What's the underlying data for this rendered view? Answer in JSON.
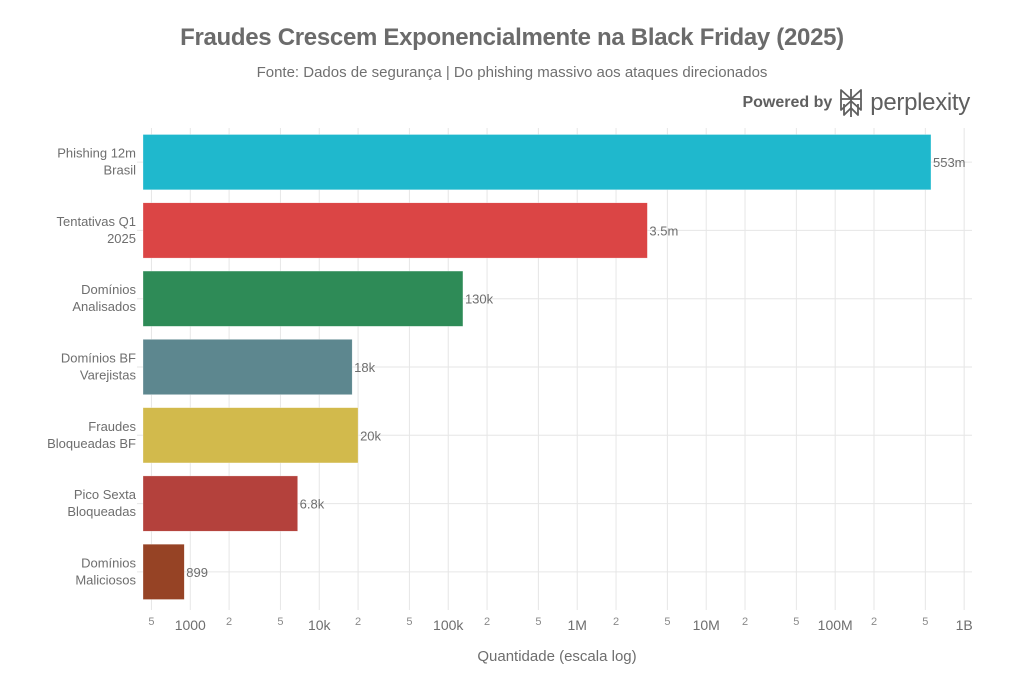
{
  "chart_data": {
    "type": "bar",
    "orientation": "horizontal",
    "title": "Fraudes Crescem Exponencialmente na Black Friday (2025)",
    "subtitle": "Fonte: Dados de segurança | Do phishing massivo aos ataques direcionados",
    "xlabel": "Quantidade (escala log)",
    "ylabel": "",
    "xscale": "log",
    "xlim": [
      430,
      1150000000
    ],
    "grid": true,
    "categories": [
      [
        "Phishing 12m",
        "Brasil"
      ],
      [
        "Tentativas Q1",
        "2025"
      ],
      [
        "Domínios",
        "Analisados"
      ],
      [
        "Domínios BF",
        "Varejistas"
      ],
      [
        "Fraudes",
        "Bloqueadas BF"
      ],
      [
        "Pico Sexta",
        "Bloqueadas"
      ],
      [
        "Domínios",
        "Maliciosos"
      ]
    ],
    "values": [
      553000000,
      3500000,
      130000,
      18000,
      20000,
      6800,
      899
    ],
    "value_labels": [
      "553m",
      "3.5m",
      "130k",
      "18k",
      "20k",
      "6.8k",
      "899"
    ],
    "colors": [
      "#1FB8CD",
      "#DB4545",
      "#2E8B57",
      "#5D878F",
      "#D2BA4C",
      "#B4413C",
      "#964325"
    ],
    "x_major_ticks": [
      {
        "value": 1000,
        "label": "1000"
      },
      {
        "value": 10000,
        "label": "10k"
      },
      {
        "value": 100000,
        "label": "100k"
      },
      {
        "value": 1000000,
        "label": "1M"
      },
      {
        "value": 10000000,
        "label": "10M"
      },
      {
        "value": 100000000,
        "label": "100M"
      },
      {
        "value": 1000000000,
        "label": "1B"
      }
    ],
    "x_minor_ticks": [
      {
        "value": 500,
        "label": "5"
      },
      {
        "value": 2000,
        "label": "2"
      },
      {
        "value": 5000,
        "label": "5"
      },
      {
        "value": 20000,
        "label": "2"
      },
      {
        "value": 50000,
        "label": "5"
      },
      {
        "value": 200000,
        "label": "2"
      },
      {
        "value": 500000,
        "label": "5"
      },
      {
        "value": 2000000,
        "label": "2"
      },
      {
        "value": 5000000,
        "label": "5"
      },
      {
        "value": 20000000,
        "label": "2"
      },
      {
        "value": 50000000,
        "label": "5"
      },
      {
        "value": 200000000,
        "label": "2"
      },
      {
        "value": 500000000,
        "label": "5"
      }
    ]
  },
  "branding": {
    "powered_by": "Powered by",
    "brand": "perplexity"
  },
  "colors": {
    "text": "#6e6e6e",
    "grid": "#e6e6e6"
  }
}
